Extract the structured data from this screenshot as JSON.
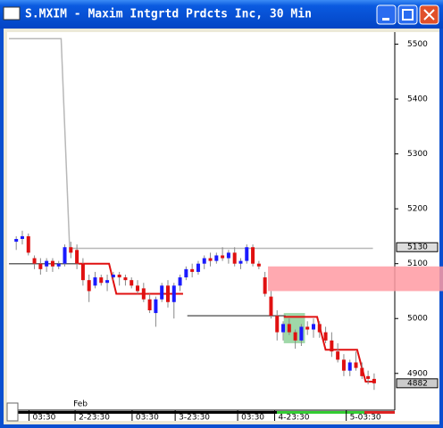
{
  "window": {
    "title": "S.MXIM - Maxim Intgrtd Prdcts Inc, 30 Min"
  },
  "chart_data": {
    "type": "candlestick",
    "up_color": "#1a1aff",
    "down_color": "#e01010",
    "x": [
      0,
      1,
      2,
      3,
      4,
      5,
      6,
      7,
      8,
      9,
      10,
      11,
      12,
      13,
      14,
      15,
      16,
      17,
      18,
      19,
      20,
      21,
      22,
      23,
      24,
      25,
      26,
      27,
      28,
      29,
      30,
      31,
      32,
      33,
      34,
      35,
      36,
      37,
      38,
      39,
      40,
      41,
      42,
      43,
      44,
      45,
      46,
      47,
      48,
      49,
      50,
      51,
      52,
      53,
      54,
      55,
      56,
      57,
      58,
      59
    ],
    "open": [
      5140,
      5145,
      5150,
      5110,
      5100,
      5095,
      5105,
      5095,
      5100,
      5130,
      5125,
      5100,
      5070,
      5060,
      5075,
      5065,
      5075,
      5080,
      5075,
      5070,
      5060,
      5055,
      5035,
      5010,
      5035,
      5060,
      5030,
      5060,
      5075,
      5090,
      5085,
      5100,
      5110,
      5105,
      5115,
      5110,
      5120,
      5100,
      5105,
      5130,
      5100,
      5075,
      5040,
      5005,
      4975,
      4990,
      4975,
      4960,
      4985,
      4980,
      4990,
      4975,
      4960,
      4940,
      4925,
      4905,
      4920,
      4910,
      4895,
      4890
    ],
    "high": [
      5150,
      5160,
      5155,
      5115,
      5110,
      5110,
      5110,
      5105,
      5135,
      5140,
      5135,
      5110,
      5080,
      5085,
      5080,
      5080,
      5085,
      5085,
      5080,
      5075,
      5070,
      5065,
      5045,
      5040,
      5065,
      5070,
      5065,
      5080,
      5095,
      5100,
      5105,
      5115,
      5120,
      5120,
      5130,
      5125,
      5130,
      5110,
      5135,
      5135,
      5105,
      5085,
      5050,
      5015,
      4995,
      5000,
      4980,
      4990,
      4995,
      5000,
      4995,
      4985,
      4975,
      4955,
      4935,
      4925,
      4940,
      4920,
      4905,
      4900
    ],
    "low": [
      5125,
      5135,
      5115,
      5090,
      5080,
      5085,
      5085,
      5090,
      5095,
      5110,
      5090,
      5060,
      5030,
      5055,
      5060,
      5050,
      5070,
      5060,
      5060,
      5055,
      5045,
      5030,
      5010,
      4985,
      5030,
      5020,
      5000,
      5050,
      5070,
      5075,
      5080,
      5090,
      5095,
      5100,
      5105,
      5100,
      5095,
      5090,
      5100,
      5095,
      5090,
      5040,
      5000,
      4960,
      4960,
      4970,
      4945,
      4950,
      4970,
      4965,
      4965,
      4955,
      4930,
      4920,
      4895,
      4895,
      4905,
      4890,
      4880,
      4870
    ],
    "close": [
      5145,
      5150,
      5120,
      5100,
      5090,
      5105,
      5095,
      5100,
      5130,
      5120,
      5100,
      5070,
      5050,
      5075,
      5065,
      5070,
      5080,
      5075,
      5070,
      5060,
      5050,
      5035,
      5015,
      5035,
      5060,
      5030,
      5060,
      5075,
      5090,
      5085,
      5100,
      5110,
      5105,
      5115,
      5110,
      5120,
      5100,
      5105,
      5130,
      5100,
      5095,
      5045,
      5005,
      4975,
      4990,
      4975,
      4960,
      4985,
      4980,
      4990,
      4975,
      4960,
      4940,
      4925,
      4905,
      4920,
      4910,
      4895,
      4890,
      4882
    ],
    "xlim": [
      -1.5,
      62.4
    ],
    "ylim": [
      4833,
      5522
    ],
    "yticks": [
      4900,
      5000,
      5100,
      5200,
      5300,
      5400,
      5500
    ],
    "xticks": [
      {
        "value": 2.1,
        "label": "03:30"
      },
      {
        "value": 9.7,
        "label": "2-23:30"
      },
      {
        "value": 19.1,
        "label": "03:30"
      },
      {
        "value": 26.2,
        "label": "3-23:30"
      },
      {
        "value": 36.5,
        "label": "03:30"
      },
      {
        "value": 42.6,
        "label": "4-23:30"
      },
      {
        "value": 54.4,
        "label": "5-03:30"
      }
    ],
    "month_label": "Feb",
    "price_tags": [
      5130,
      4882
    ],
    "lines": [
      {
        "color": "#b8b8b8",
        "x": [
          -1.2,
          7.4,
          8.8,
          58.8
        ],
        "values": [
          5510,
          5510,
          5128,
          5128
        ]
      },
      {
        "color": "#666666",
        "x": [
          -1.2,
          10.6
        ],
        "values": [
          5100,
          5100
        ]
      },
      {
        "color": "#666666",
        "x": [
          28.2,
          44.4
        ],
        "values": [
          5005,
          5005
        ]
      },
      {
        "color": "#e01010",
        "x": [
          10.3,
          15.3,
          16.5,
          27.5,
          null,
          44.1,
          49.6,
          51,
          56.2,
          57.6,
          59.1
        ],
        "values": [
          5100,
          5100,
          5045,
          5045,
          null,
          5003,
          5003,
          4943,
          4943,
          4885,
          4885
        ]
      }
    ],
    "zone": {
      "color": "#ff9aa2",
      "x_start": 41.5,
      "low": 5050,
      "high": 5095
    },
    "highlight": {
      "color": "#9fd8a8",
      "x_start": 44.1,
      "x_end": 47.6,
      "low": 4955,
      "high": 5010
    }
  }
}
